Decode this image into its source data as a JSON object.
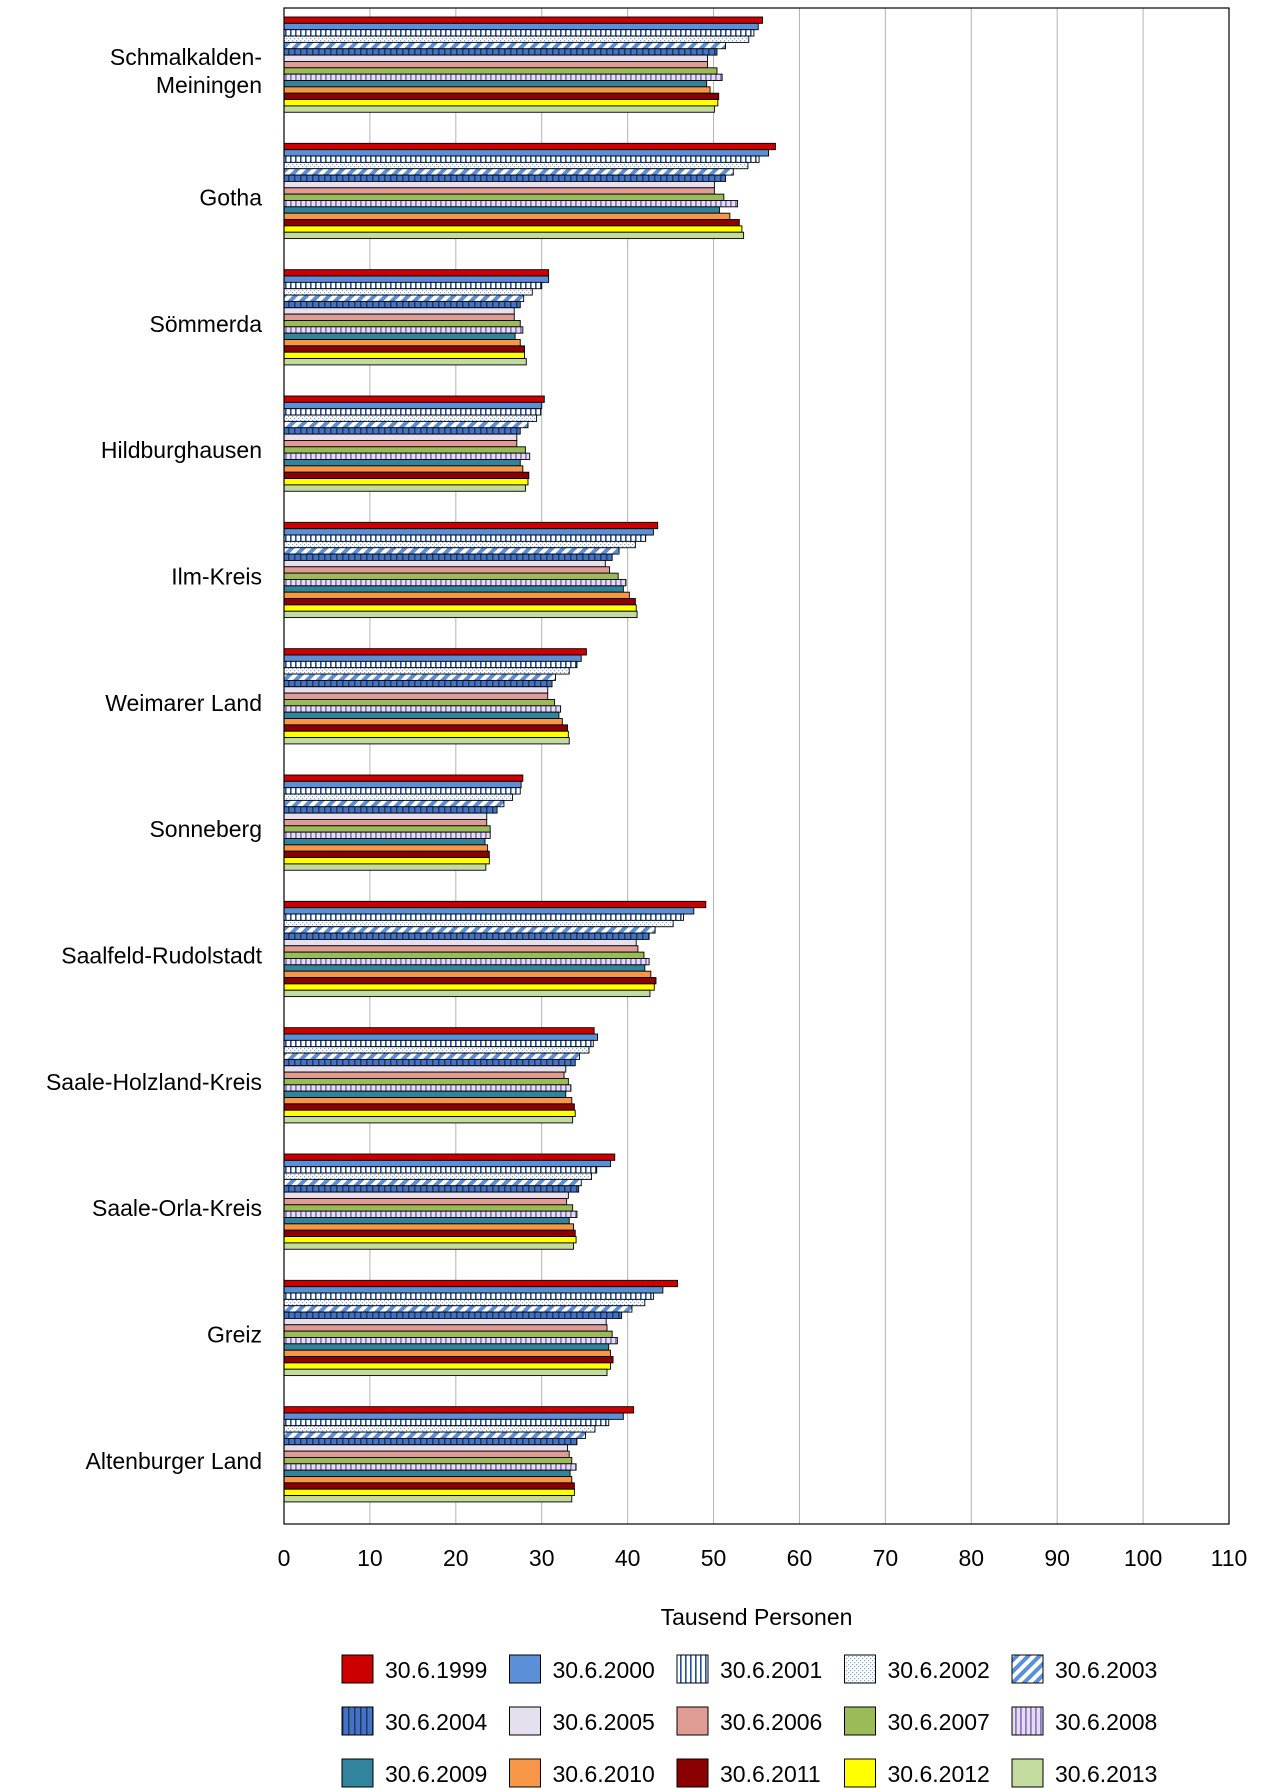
{
  "chart_data": {
    "type": "bar",
    "orientation": "horizontal",
    "title": "",
    "xlabel": "Tausend Personen",
    "ylabel": "",
    "xlim": [
      0,
      110
    ],
    "xticks": [
      0,
      10,
      20,
      30,
      40,
      50,
      60,
      70,
      80,
      90,
      100,
      110
    ],
    "grid": "vertical",
    "legend_position": "bottom",
    "categories": [
      "Schmalkalden-Meiningen",
      "Gotha",
      "Sömmerda",
      "Hildburghausen",
      "Ilm-Kreis",
      "Weimarer Land",
      "Sonneberg",
      "Saalfeld-Rudolstadt",
      "Saale-Holzland-Kreis",
      "Saale-Orla-Kreis",
      "Greiz",
      "Altenburger Land"
    ],
    "category_lines": [
      [
        "Schmalkalden-",
        "Meiningen"
      ],
      [
        "Gotha"
      ],
      [
        "Sömmerda"
      ],
      [
        "Hildburghausen"
      ],
      [
        "Ilm-Kreis"
      ],
      [
        "Weimarer Land"
      ],
      [
        "Sonneberg"
      ],
      [
        "Saalfeld-Rudolstadt"
      ],
      [
        "Saale-Holzland-Kreis"
      ],
      [
        "Saale-Orla-Kreis"
      ],
      [
        "Greiz"
      ],
      [
        "Altenburger Land"
      ]
    ],
    "series": [
      {
        "name": "30.6.1999",
        "color": "#cc0000",
        "pattern": "solid",
        "values": [
          55.7,
          57.2,
          30.8,
          30.3,
          43.5,
          35.2,
          27.8,
          49.1,
          36.1,
          38.5,
          45.8,
          40.7
        ]
      },
      {
        "name": "30.6.2000",
        "color": "#5b8fd8",
        "pattern": "solid",
        "values": [
          55.2,
          56.4,
          30.8,
          30.0,
          43.0,
          34.6,
          27.6,
          47.7,
          36.5,
          38.0,
          44.1,
          39.5
        ]
      },
      {
        "name": "30.6.2001",
        "color": "#1f4e9c",
        "pattern": "vertical-lines",
        "values": [
          54.7,
          55.3,
          30.0,
          29.9,
          42.1,
          34.1,
          27.5,
          46.5,
          36.0,
          36.4,
          43.0,
          37.8
        ]
      },
      {
        "name": "30.6.2002",
        "color": "#7ea5e0",
        "pattern": "dots",
        "values": [
          54.1,
          54.0,
          28.9,
          29.4,
          40.9,
          33.2,
          26.6,
          45.3,
          35.5,
          35.8,
          42.0,
          36.2
        ]
      },
      {
        "name": "30.6.2003",
        "color": "#5b8fd8",
        "pattern": "diagonal",
        "values": [
          51.4,
          52.3,
          27.9,
          28.4,
          39.0,
          31.6,
          25.6,
          43.2,
          34.4,
          34.6,
          40.5,
          35.1
        ]
      },
      {
        "name": "30.6.2004",
        "color": "#4472c4",
        "pattern": "vertical-bars",
        "values": [
          50.4,
          51.4,
          27.5,
          27.5,
          38.2,
          31.2,
          24.8,
          42.5,
          33.9,
          34.3,
          39.3,
          34.1
        ]
      },
      {
        "name": "30.6.2005",
        "color": "#e6e0ee",
        "pattern": "solid",
        "values": [
          49.3,
          50.1,
          26.8,
          27.1,
          37.4,
          30.7,
          23.6,
          41.0,
          32.8,
          33.1,
          37.5,
          33.0
        ]
      },
      {
        "name": "30.6.2006",
        "color": "#e09b95",
        "pattern": "solid",
        "values": [
          49.3,
          50.1,
          26.8,
          27.1,
          37.9,
          30.7,
          23.6,
          41.2,
          32.6,
          32.9,
          37.6,
          33.2
        ]
      },
      {
        "name": "30.6.2007",
        "color": "#9bbb59",
        "pattern": "solid",
        "values": [
          50.4,
          51.2,
          27.5,
          28.1,
          38.9,
          31.5,
          24.0,
          41.9,
          33.1,
          33.6,
          38.2,
          33.5
        ]
      },
      {
        "name": "30.6.2008",
        "color": "#c9b8dd",
        "pattern": "vertical-lines-purple",
        "values": [
          51.0,
          52.8,
          27.8,
          28.6,
          39.8,
          32.2,
          24.0,
          42.5,
          33.4,
          34.1,
          38.8,
          34.0
        ]
      },
      {
        "name": "30.6.2009",
        "color": "#31849b",
        "pattern": "solid",
        "values": [
          49.2,
          50.7,
          26.9,
          27.5,
          39.5,
          32.0,
          23.4,
          42.0,
          32.8,
          33.2,
          37.8,
          33.3
        ]
      },
      {
        "name": "30.6.2010",
        "color": "#f79646",
        "pattern": "solid",
        "values": [
          49.6,
          51.9,
          27.5,
          27.8,
          40.2,
          32.4,
          23.7,
          42.7,
          33.5,
          33.7,
          38.0,
          33.5
        ]
      },
      {
        "name": "30.6.2011",
        "color": "#8b0000",
        "pattern": "solid",
        "values": [
          50.6,
          53.0,
          28.0,
          28.5,
          40.9,
          33.0,
          23.9,
          43.3,
          33.8,
          33.9,
          38.3,
          33.8
        ]
      },
      {
        "name": "30.6.2012",
        "color": "#ffff00",
        "pattern": "solid",
        "values": [
          50.5,
          53.3,
          28.0,
          28.4,
          41.0,
          33.1,
          23.9,
          43.1,
          33.9,
          34.0,
          38.0,
          33.8
        ]
      },
      {
        "name": "30.6.2013",
        "color": "#c4dba0",
        "pattern": "solid",
        "values": [
          50.1,
          53.5,
          28.2,
          28.1,
          41.1,
          33.2,
          23.5,
          42.6,
          33.6,
          33.7,
          37.6,
          33.5
        ]
      }
    ]
  }
}
